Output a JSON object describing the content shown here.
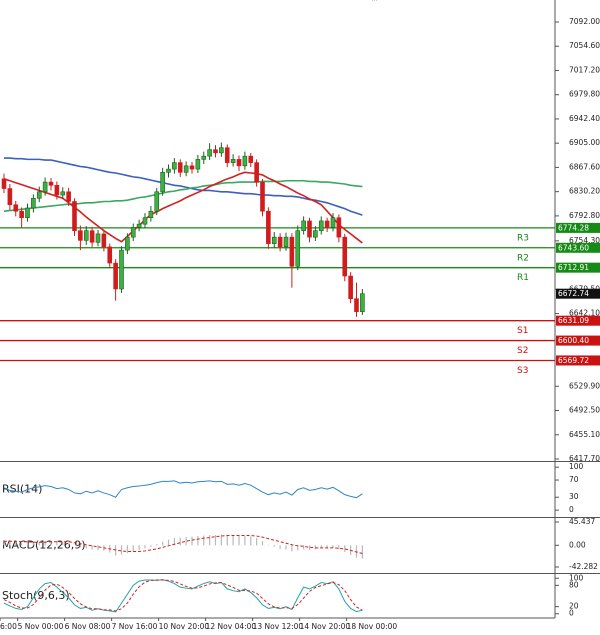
{
  "chart_data": [
    {
      "type": "candlestick",
      "categories": [
        "6:00",
        null,
        null,
        "5 Nov 00:00",
        null,
        null,
        null,
        null,
        null,
        null,
        null,
        "6 Nov 08:00",
        null,
        null,
        null,
        null,
        null,
        null,
        null,
        "7 Nov 16:00",
        null,
        null,
        null,
        null,
        null,
        null,
        null,
        "10 Nov 20:00",
        null,
        null,
        null,
        null,
        null,
        null,
        null,
        "12 Nov 04:00",
        null,
        null,
        null,
        null,
        null,
        null,
        null,
        "13 Nov 12:00",
        null,
        null,
        null,
        null,
        null,
        null,
        null,
        "14 Nov 20:00",
        null,
        null,
        null,
        null,
        null,
        null,
        null,
        "18 Nov 00:00",
        null,
        null
      ],
      "open": [
        6850,
        6835,
        6810,
        6800,
        6790,
        6805,
        6820,
        6830,
        6845,
        6840,
        6825,
        6830,
        6815,
        6770,
        6755,
        6770,
        6752,
        6765,
        6745,
        6720,
        6680,
        6740,
        6760,
        6775,
        6780,
        6790,
        6800,
        6830,
        6860,
        6865,
        6875,
        6860,
        6870,
        6865,
        6880,
        6885,
        6895,
        6890,
        6898,
        6875,
        6880,
        6870,
        6885,
        6875,
        6845,
        6800,
        6750,
        6760,
        6745,
        6760,
        6715,
        6770,
        6785,
        6760,
        6770,
        6785,
        6775,
        6790,
        6760,
        6700,
        6665,
        6645
      ],
      "high": [
        6858,
        6842,
        6816,
        6806,
        6812,
        6826,
        6838,
        6852,
        6851,
        6846,
        6837,
        6836,
        6820,
        6778,
        6777,
        6776,
        6771,
        6770,
        6750,
        6726,
        6746,
        6766,
        6781,
        6787,
        6797,
        6808,
        6836,
        6867,
        6872,
        6882,
        6880,
        6877,
        6876,
        6887,
        6892,
        6905,
        6902,
        6906,
        6903,
        6888,
        6886,
        6892,
        6890,
        6880,
        6850,
        6806,
        6768,
        6766,
        6767,
        6766,
        6778,
        6792,
        6790,
        6777,
        6792,
        6790,
        6797,
        6795,
        6765,
        6706,
        6690,
        6680
      ],
      "low": [
        6828,
        6802,
        6792,
        6775,
        6784,
        6798,
        6814,
        6824,
        6832,
        6818,
        6819,
        6808,
        6762,
        6740,
        6748,
        6745,
        6746,
        6738,
        6712,
        6662,
        6674,
        6734,
        6754,
        6769,
        6774,
        6784,
        6794,
        6824,
        6852,
        6858,
        6853,
        6854,
        6858,
        6859,
        6873,
        6879,
        6883,
        6884,
        6868,
        6869,
        6862,
        6864,
        6868,
        6838,
        6792,
        6742,
        6744,
        6738,
        6739,
        6682,
        6709,
        6764,
        6752,
        6754,
        6764,
        6768,
        6769,
        6752,
        6692,
        6658,
        6637,
        6640
      ],
      "close": [
        6835,
        6810,
        6800,
        6790,
        6805,
        6820,
        6830,
        6845,
        6840,
        6825,
        6830,
        6815,
        6770,
        6755,
        6770,
        6752,
        6765,
        6745,
        6720,
        6680,
        6740,
        6760,
        6775,
        6780,
        6790,
        6800,
        6830,
        6860,
        6865,
        6875,
        6860,
        6870,
        6865,
        6880,
        6885,
        6895,
        6890,
        6898,
        6875,
        6880,
        6870,
        6885,
        6875,
        6845,
        6800,
        6750,
        6760,
        6745,
        6760,
        6715,
        6770,
        6785,
        6760,
        6770,
        6785,
        6775,
        6790,
        6760,
        6700,
        6665,
        6645,
        6672.74
      ],
      "up_color": "#3cb043",
      "down_color": "#d01c1c",
      "series": [
        {
          "color": "#3c5fc0",
          "values": [
            6882,
            6882,
            6881,
            6881,
            6880,
            6880,
            6880,
            6879,
            6879,
            6877,
            6875,
            6873,
            6871,
            6869,
            6868,
            6866,
            6864,
            6862,
            6860,
            6859,
            6857,
            6855,
            6853,
            6852,
            6850,
            6848,
            6846,
            6844,
            6842,
            6840,
            6839,
            6837,
            6835,
            6833,
            6832,
            6832,
            6831,
            6830,
            6830,
            6829,
            6828,
            6827,
            6827,
            6826,
            6825,
            6825,
            6824,
            6824,
            6823,
            6823,
            6822,
            6820,
            6818,
            6817,
            6815,
            6813,
            6810,
            6807,
            6804,
            6800,
            6797,
            6794
          ]
        },
        {
          "color": "#3aa860",
          "values": [
            6800,
            6801,
            6802,
            6803,
            6804,
            6805,
            6806,
            6807,
            6808,
            6809,
            6810,
            6811,
            6811,
            6812,
            6813,
            6813,
            6814,
            6815,
            6815,
            6816,
            6816,
            6817,
            6819,
            6821,
            6822,
            6824,
            6826,
            6828,
            6830,
            6831,
            6833,
            6834,
            6836,
            6837,
            6839,
            6840,
            6841,
            6843,
            6844,
            6844,
            6845,
            6845,
            6845,
            6845,
            6846,
            6846,
            6846,
            6846,
            6847,
            6847,
            6847,
            6847,
            6846,
            6846,
            6845,
            6845,
            6844,
            6843,
            6842,
            6840,
            6839,
            6838
          ]
        },
        {
          "color": "#d42020",
          "values": [
            6850,
            6847,
            6844,
            6841,
            6838,
            6835,
            6832,
            6829,
            6826,
            6823,
            6820,
            6813,
            6806,
            6799,
            6791,
            6784,
            6777,
            6770,
            6764,
            6758,
            6753,
            6761,
            6770,
            6778,
            6787,
            6795,
            6799,
            6804,
            6808,
            6812,
            6816,
            6821,
            6825,
            6829,
            6833,
            6838,
            6842,
            6846,
            6850,
            6853,
            6857,
            6860,
            6859,
            6858,
            6856,
            6851,
            6847,
            6842,
            6838,
            6833,
            6828,
            6824,
            6819,
            6815,
            6810,
            6800,
            6790,
            6779,
            6772,
            6765,
            6758,
            6751
          ]
        }
      ],
      "levels": [
        {
          "name": "R3",
          "value": 6774.28,
          "color": "#158a15"
        },
        {
          "name": "R2",
          "value": 6743.6,
          "label": "6743.60",
          "color": "#158a15"
        },
        {
          "name": "R1",
          "value": 6712.91,
          "color": "#158a15"
        },
        {
          "name": "S1",
          "value": 6631.09,
          "color": "#cc1111"
        },
        {
          "name": "S2",
          "value": 6600.4,
          "label": "6600.40",
          "color": "#cc1111"
        },
        {
          "name": "S3",
          "value": 6569.72,
          "color": "#cc1111"
        }
      ],
      "last_price": 6672.74,
      "ylim": [
        6414.6,
        7118.2
      ],
      "yticks": [
        {
          "value": 7092,
          "label": "7092.00"
        },
        {
          "value": 7054.6,
          "label": "7054.60"
        },
        {
          "value": 7017.2,
          "label": "7017.20"
        },
        {
          "value": 6979.8,
          "label": "6979.80"
        },
        {
          "value": 6942.4,
          "label": "6942.40"
        },
        {
          "value": 6905,
          "label": "6905.00"
        },
        {
          "value": 6867.6,
          "label": "6867.60"
        },
        {
          "value": 6830.2,
          "label": "6830.20"
        },
        {
          "value": 6792.8,
          "label": "6792.80"
        },
        {
          "value": 6754.3,
          "label": "6754.30"
        },
        {
          "value": 6679.5,
          "label": "6679.50"
        },
        {
          "value": 6642.1,
          "label": "6642.10"
        },
        {
          "value": 6529.9,
          "label": "6529.90"
        },
        {
          "value": 6492.5,
          "label": "6492.50"
        },
        {
          "value": 6455.1,
          "label": "6455.10"
        },
        {
          "value": 6417.7,
          "label": "6417.70"
        }
      ]
    },
    {
      "type": "line",
      "title": "RSI(14)",
      "series": [
        {
          "color": "#2f86c8",
          "values": [
            52,
            46,
            44,
            42,
            48,
            52,
            54,
            57,
            55,
            50,
            52,
            48,
            40,
            38,
            44,
            40,
            45,
            40,
            36,
            30,
            48,
            52,
            55,
            56,
            58,
            60,
            64,
            67,
            67,
            68,
            63,
            65,
            63,
            66,
            67,
            68,
            66,
            67,
            60,
            61,
            58,
            62,
            58,
            50,
            42,
            36,
            40,
            37,
            42,
            35,
            48,
            52,
            46,
            48,
            52,
            49,
            53,
            45,
            36,
            32,
            29,
            38
          ]
        }
      ],
      "ylim": [
        -16,
        112
      ],
      "yticks": [
        100,
        70,
        30,
        0
      ]
    },
    {
      "type": "bar",
      "title": "MACD(12,26,9)",
      "values": [
        10,
        8,
        6,
        4,
        4,
        5,
        6,
        8,
        8,
        7,
        6,
        5,
        0,
        -4,
        -6,
        -8,
        -9,
        -11,
        -14,
        -20,
        -18,
        -15,
        -12,
        -9,
        -6,
        -3,
        2,
        7,
        11,
        14,
        15,
        16,
        17,
        18,
        19,
        20,
        20,
        21,
        20,
        19,
        18,
        18,
        17,
        14,
        8,
        1,
        -3,
        -7,
        -8,
        -12,
        -10,
        -8,
        -9,
        -8,
        -6,
        -6,
        -5,
        -8,
        -13,
        -19,
        -24,
        -26
      ],
      "color": "#b8b8b8",
      "series": [
        {
          "color": "#d42020",
          "dashed": true,
          "values": [
            8,
            8,
            8,
            7,
            7,
            6,
            6,
            6,
            7,
            7,
            7,
            7,
            5,
            3,
            1,
            -1,
            -3,
            -5,
            -7,
            -9,
            -11,
            -12,
            -12,
            -12,
            -11,
            -9,
            -7,
            -4,
            -1,
            2,
            5,
            8,
            10,
            12,
            14,
            15,
            17,
            18,
            19,
            19,
            19,
            19,
            19,
            18,
            16,
            13,
            10,
            7,
            4,
            1,
            -1,
            -2,
            -4,
            -5,
            -5,
            -5,
            -5,
            -6,
            -7,
            -10,
            -13,
            -16
          ]
        }
      ],
      "ylim": [
        -54,
        53.2
      ],
      "yticks": [
        45.437,
        {
          "value": 0,
          "label": "0.00"
        },
        -42.282
      ]
    },
    {
      "type": "line",
      "title": "Stoch(9,6,3)",
      "series": [
        {
          "color": "#1fa5a5",
          "values": [
            30,
            22,
            15,
            12,
            20,
            45,
            70,
            85,
            88,
            75,
            60,
            45,
            25,
            15,
            18,
            10,
            14,
            10,
            8,
            5,
            30,
            55,
            80,
            92,
            95,
            95,
            94,
            96,
            92,
            85,
            75,
            72,
            70,
            78,
            85,
            90,
            85,
            88,
            70,
            65,
            62,
            70,
            60,
            45,
            25,
            15,
            18,
            14,
            20,
            12,
            45,
            75,
            70,
            78,
            88,
            85,
            90,
            70,
            35,
            15,
            6,
            10
          ]
        },
        {
          "color": "#d42020",
          "dashed": true,
          "values": [
            40,
            32,
            22,
            16,
            16,
            26,
            45,
            67,
            81,
            83,
            74,
            60,
            43,
            28,
            19,
            14,
            14,
            11,
            11,
            8,
            14,
            30,
            55,
            76,
            89,
            94,
            95,
            95,
            94,
            91,
            84,
            77,
            72,
            73,
            78,
            84,
            87,
            88,
            81,
            74,
            66,
            66,
            64,
            58,
            43,
            28,
            19,
            16,
            17,
            15,
            26,
            44,
            63,
            74,
            79,
            84,
            88,
            82,
            65,
            40,
            19,
            10
          ]
        }
      ],
      "ylim": [
        -12,
        112
      ],
      "yticks": [
        100,
        80,
        20,
        0
      ]
    }
  ]
}
